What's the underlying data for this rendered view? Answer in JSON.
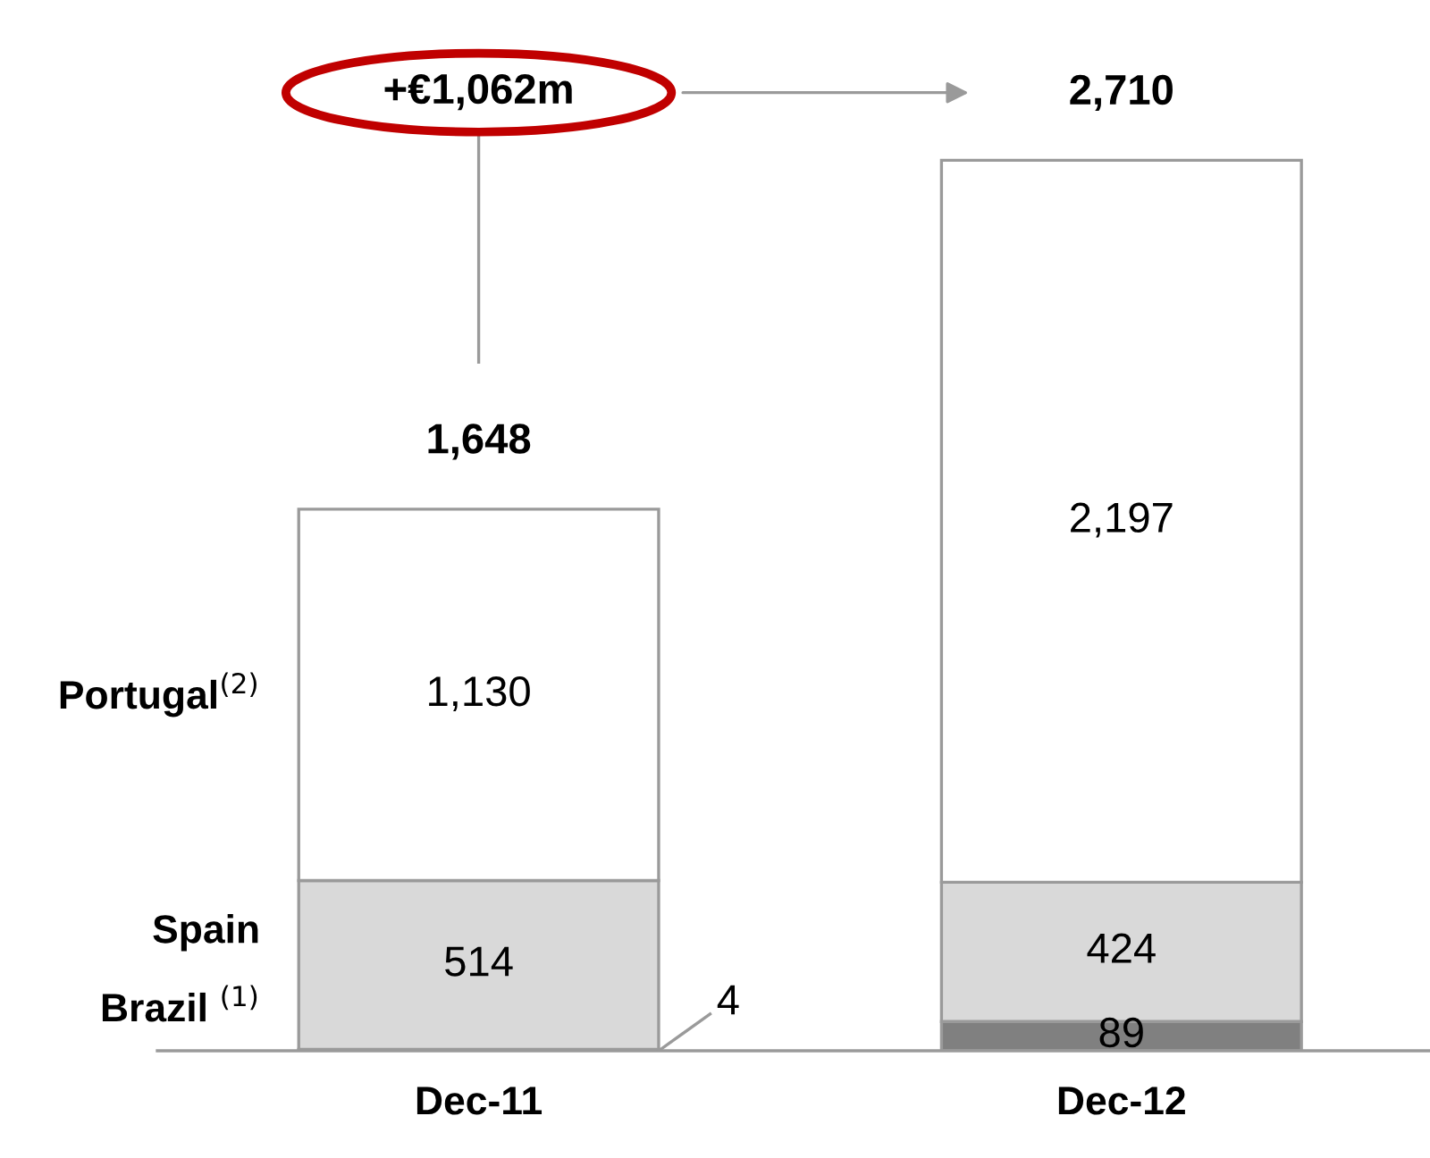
{
  "chart_data": {
    "type": "bar",
    "stacked": true,
    "categories": [
      "Dec-11",
      "Dec-12"
    ],
    "series": [
      {
        "name": "Brazil $^{(1)}$",
        "color": "#808080",
        "values": [
          4,
          89
        ],
        "value_labels": [
          "4",
          "89"
        ]
      },
      {
        "name": "Spain",
        "color": "#d9d9d9",
        "values": [
          514,
          424
        ],
        "value_labels": [
          "514",
          "424"
        ]
      },
      {
        "name": "Portugal$^{(2)}$",
        "color": "#ffffff",
        "values": [
          1130,
          2197
        ],
        "value_labels": [
          "1,130",
          "2,197"
        ]
      }
    ],
    "totals": [
      "1,648",
      "2,710"
    ],
    "annotations": [
      "+€1,062m"
    ],
    "legend": false,
    "grid": false
  }
}
